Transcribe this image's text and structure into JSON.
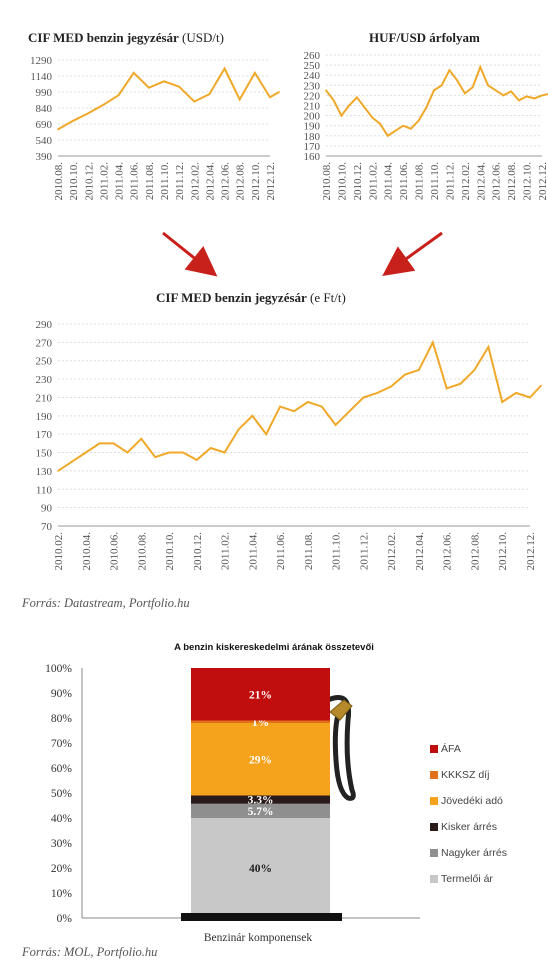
{
  "chart_data": [
    {
      "type": "line",
      "title": "CIF MED benzin jegyzésár",
      "unit": "(USD/t)",
      "ylim": [
        390,
        1290
      ],
      "yticks": [
        390,
        540,
        690,
        840,
        990,
        1140,
        1290
      ],
      "xticks": [
        "2010.08.",
        "2010.10.",
        "2010.12.",
        "2011.02.",
        "2011.04.",
        "2011.06.",
        "2011.08.",
        "2011.10.",
        "2011.12.",
        "2012.02.",
        "2012.04.",
        "2012.06.",
        "2012.08.",
        "2012.10.",
        "2012.12."
      ],
      "color": "#f0a828",
      "grid": true,
      "x": [
        0,
        1,
        2,
        3,
        4,
        5,
        6,
        7,
        8,
        9,
        10,
        11,
        12,
        13,
        14,
        14.6
      ],
      "values": [
        640,
        720,
        790,
        870,
        960,
        1170,
        1030,
        1090,
        1040,
        900,
        970,
        1210,
        920,
        1170,
        940,
        990
      ]
    },
    {
      "type": "line",
      "title": "HUF/USD árfolyam",
      "ylim": [
        160,
        260
      ],
      "yticks": [
        160,
        170,
        180,
        190,
        200,
        210,
        220,
        230,
        240,
        250,
        260
      ],
      "xticks": [
        "2010.08.",
        "2010.10.",
        "2010.12.",
        "2011.02.",
        "2011.04.",
        "2011.06.",
        "2011.08.",
        "2011.10.",
        "2011.12.",
        "2012.02.",
        "2012.04.",
        "2012.06.",
        "2012.08.",
        "2012.10.",
        "2012.12."
      ],
      "color": "#f0a828",
      "grid": true,
      "x": [
        0,
        0.5,
        1,
        1.5,
        2,
        2.5,
        3,
        3.5,
        4,
        4.5,
        5,
        5.5,
        6,
        6.5,
        7,
        7.5,
        8,
        8.5,
        9,
        9.5,
        10,
        10.5,
        11,
        11.5,
        12,
        12.5,
        13,
        13.5,
        14,
        14.6
      ],
      "values": [
        225,
        215,
        200,
        210,
        218,
        208,
        198,
        192,
        180,
        185,
        190,
        187,
        195,
        208,
        225,
        230,
        245,
        235,
        222,
        228,
        248,
        230,
        225,
        220,
        224,
        215,
        219,
        217,
        220,
        222
      ]
    },
    {
      "type": "line",
      "title": "CIF MED  benzin jegyzésár",
      "unit": "(e Ft/t)",
      "ylim": [
        70,
        290
      ],
      "yticks": [
        70,
        90,
        110,
        130,
        150,
        170,
        190,
        210,
        230,
        250,
        270,
        290
      ],
      "xticks": [
        "2010.02.",
        "2010.04.",
        "2010.06.",
        "2010.08.",
        "2010.10.",
        "2010.12.",
        "2011.02.",
        "2011.04.",
        "2011.06.",
        "2011.08.",
        "2011.10.",
        "2011.12.",
        "2012.02.",
        "2012.04.",
        "2012.06.",
        "2012.08.",
        "2012.10.",
        "2012.12."
      ],
      "color": "#f0a828",
      "grid": true,
      "x": [
        0,
        0.5,
        1,
        1.5,
        2,
        2.5,
        3,
        3.5,
        4,
        4.5,
        5,
        5.5,
        6,
        6.5,
        7,
        7.5,
        8,
        8.5,
        9,
        9.5,
        10,
        10.5,
        11,
        11.5,
        12,
        12.5,
        13,
        13.5,
        14,
        14.5,
        15,
        15.5,
        16,
        16.5,
        17,
        17.4
      ],
      "values": [
        130,
        140,
        150,
        160,
        160,
        150,
        165,
        145,
        150,
        150,
        142,
        155,
        150,
        175,
        190,
        170,
        200,
        195,
        205,
        200,
        180,
        195,
        210,
        215,
        222,
        235,
        240,
        270,
        220,
        225,
        240,
        265,
        205,
        215,
        210,
        223
      ]
    },
    {
      "type": "bar",
      "title": "A benzin kiskereskedelmi árának összetevői",
      "xlabel": "Benzinár komponensek",
      "ylim": [
        0,
        100
      ],
      "yticks": [
        "0%",
        "10%",
        "20%",
        "30%",
        "40%",
        "50%",
        "60%",
        "70%",
        "80%",
        "90%",
        "100%"
      ],
      "series": [
        {
          "name": "Termelői ár",
          "value": 40,
          "label": "40%",
          "color": "#c8c8c8"
        },
        {
          "name": "Nagyker árrés",
          "value": 5.7,
          "label": "5.7%",
          "color": "#8f8f8f"
        },
        {
          "name": "Kisker árrés",
          "value": 3.3,
          "label": "3.3%",
          "color": "#2a1a1a"
        },
        {
          "name": "Jövedéki adó",
          "value": 29,
          "label": "29%",
          "color": "#f5a21d"
        },
        {
          "name": "KKKSZ díj",
          "value": 1,
          "label": "1%",
          "color": "#e0701a"
        },
        {
          "name": "ÁFA",
          "value": 21,
          "label": "21%",
          "color": "#c00d0d"
        }
      ]
    }
  ],
  "source1": "Forrás: Datastream, Portfolio.hu",
  "source2": "Forrás: MOL, Portfolio.hu"
}
